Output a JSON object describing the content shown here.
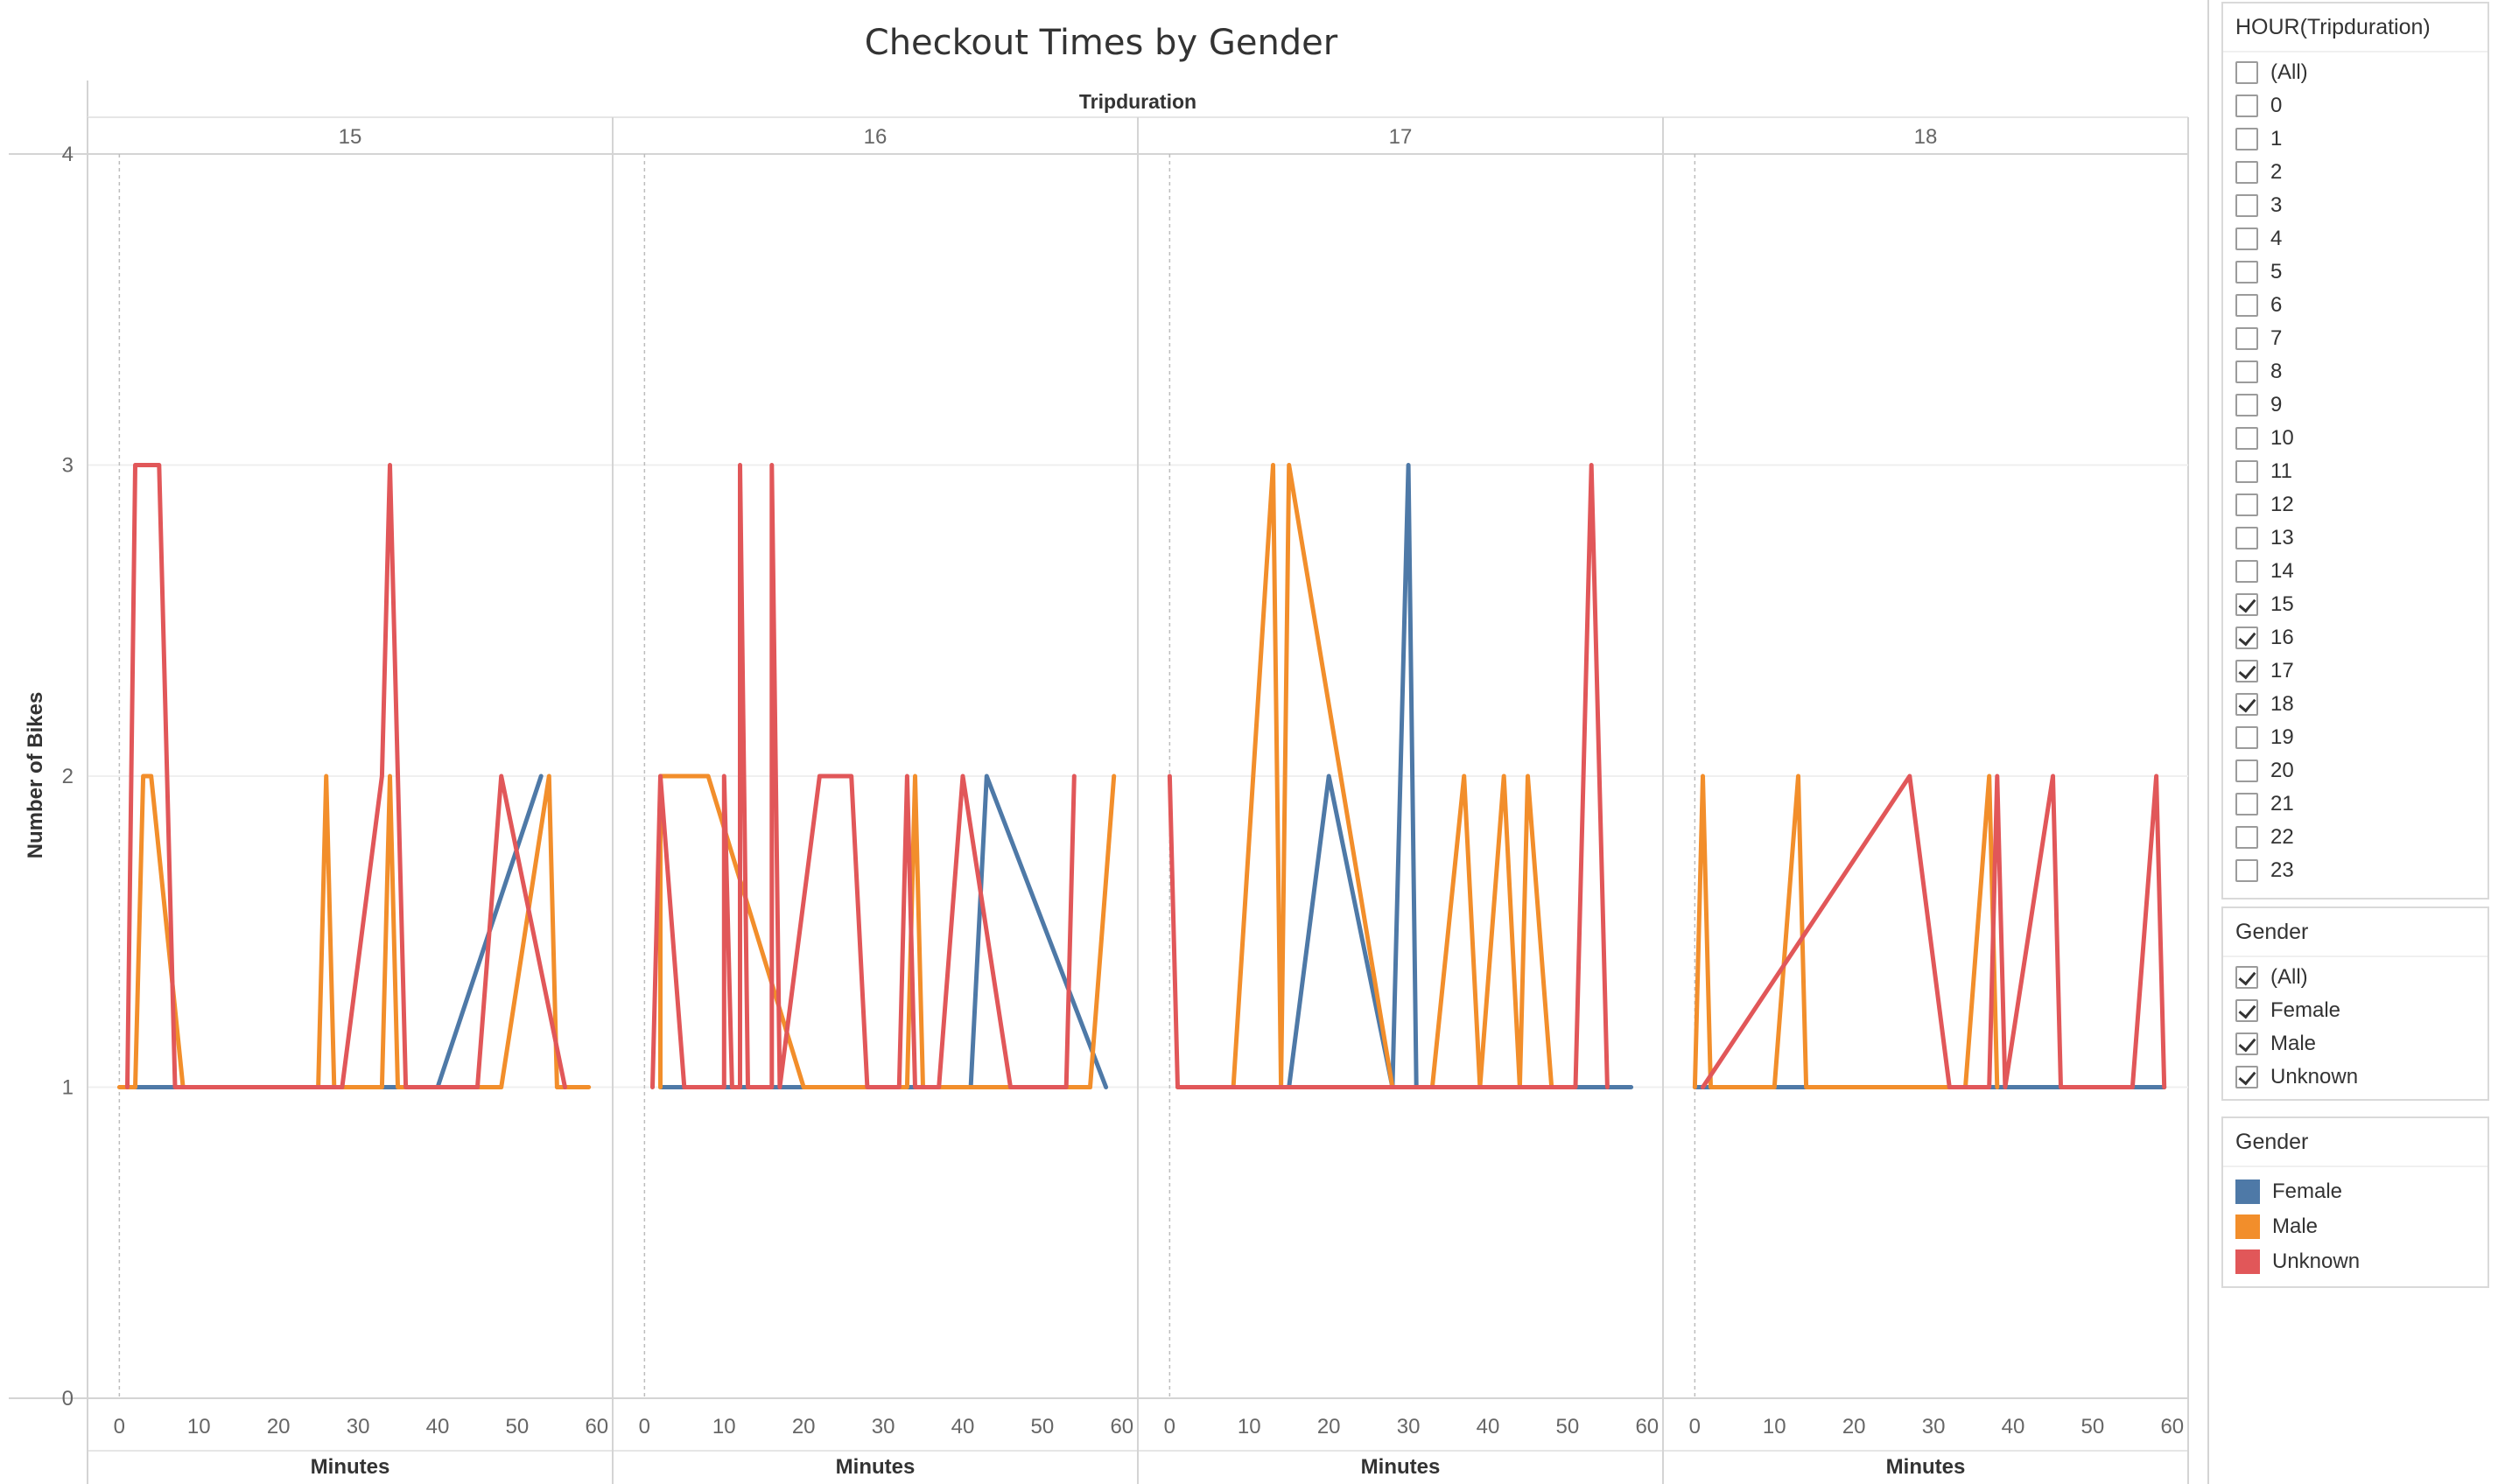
{
  "title": "Checkout Times by Gender",
  "column_header": "Tripduration",
  "colors": {
    "Female": "#4e79a7",
    "Male": "#f28e2b",
    "Unknown": "#e15759"
  },
  "chart_data": {
    "type": "line",
    "title": "Checkout Times by Gender",
    "column_header": "Tripduration",
    "xlabel": "Minutes",
    "ylabel": "Number of Bikes",
    "xlim": [
      -4,
      62
    ],
    "ylim": [
      0,
      4
    ],
    "xticks": [
      "0",
      "10",
      "20",
      "30",
      "40",
      "50",
      "60"
    ],
    "yticks": [
      "0",
      "1",
      "2",
      "3",
      "4"
    ],
    "grid": true,
    "panels": [
      {
        "label": "15",
        "series": [
          {
            "name": "Female",
            "points": [
              [
                1,
                1
              ],
              [
                40,
                1
              ],
              [
                53,
                2
              ]
            ]
          },
          {
            "name": "Male",
            "points": [
              [
                0,
                1
              ],
              [
                2,
                1
              ],
              [
                3,
                2
              ],
              [
                4,
                2
              ],
              [
                8,
                1
              ],
              [
                25,
                1
              ],
              [
                26,
                2
              ],
              [
                27,
                1
              ],
              [
                33,
                1
              ],
              [
                34,
                2
              ],
              [
                35,
                1
              ],
              [
                48,
                1
              ],
              [
                54,
                2
              ],
              [
                55,
                1
              ],
              [
                59,
                1
              ]
            ]
          },
          {
            "name": "Unknown",
            "points": [
              [
                1,
                1
              ],
              [
                2,
                3
              ],
              [
                5,
                3
              ],
              [
                7,
                1
              ],
              [
                28,
                1
              ],
              [
                33,
                2
              ],
              [
                34,
                3
              ],
              [
                36,
                1
              ],
              [
                45,
                1
              ],
              [
                48,
                2
              ],
              [
                56,
                1
              ]
            ]
          }
        ]
      },
      {
        "label": "16",
        "series": [
          {
            "name": "Female",
            "points": [
              [
                2,
                1
              ],
              [
                41,
                1
              ],
              [
                43,
                2
              ],
              [
                58,
                1
              ]
            ]
          },
          {
            "name": "Male",
            "points": [
              [
                2,
                1
              ],
              [
                2,
                2
              ],
              [
                8,
                2
              ],
              [
                20,
                1
              ],
              [
                33,
                1
              ],
              [
                34,
                2
              ],
              [
                35,
                1
              ],
              [
                54,
                1
              ],
              [
                56,
                1
              ],
              [
                59,
                2
              ]
            ]
          },
          {
            "name": "Unknown",
            "points": [
              [
                1,
                1
              ],
              [
                2,
                2
              ],
              [
                5,
                1
              ],
              [
                10,
                1
              ],
              [
                10,
                2
              ],
              [
                11,
                1
              ],
              [
                12,
                1
              ],
              [
                12,
                3
              ],
              [
                13,
                1
              ],
              [
                16,
                1
              ],
              [
                16,
                3
              ],
              [
                17,
                1
              ],
              [
                22,
                2
              ],
              [
                26,
                2
              ],
              [
                28,
                1
              ],
              [
                32,
                1
              ],
              [
                33,
                2
              ],
              [
                34,
                1
              ],
              [
                37,
                1
              ],
              [
                40,
                2
              ],
              [
                46,
                1
              ],
              [
                53,
                1
              ],
              [
                54,
                2
              ]
            ]
          }
        ]
      },
      {
        "label": "17",
        "series": [
          {
            "name": "Female",
            "points": [
              [
                7,
                1
              ],
              [
                15,
                1
              ],
              [
                20,
                2
              ],
              [
                28,
                1
              ],
              [
                30,
                3
              ],
              [
                31,
                1
              ],
              [
                58,
                1
              ]
            ]
          },
          {
            "name": "Male",
            "points": [
              [
                1,
                1
              ],
              [
                8,
                1
              ],
              [
                13,
                3
              ],
              [
                14,
                1
              ],
              [
                15,
                3
              ],
              [
                28,
                1
              ],
              [
                30,
                1
              ],
              [
                33,
                1
              ],
              [
                37,
                2
              ],
              [
                39,
                1
              ],
              [
                42,
                2
              ],
              [
                44,
                1
              ],
              [
                45,
                2
              ],
              [
                48,
                1
              ]
            ]
          },
          {
            "name": "Unknown",
            "points": [
              [
                0,
                2
              ],
              [
                1,
                1
              ],
              [
                8,
                1
              ],
              [
                28,
                1
              ],
              [
                51,
                1
              ],
              [
                53,
                3
              ],
              [
                55,
                1
              ]
            ]
          }
        ]
      },
      {
        "label": "18",
        "series": [
          {
            "name": "Female",
            "points": [
              [
                0,
                1
              ],
              [
                59,
                1
              ]
            ]
          },
          {
            "name": "Male",
            "points": [
              [
                0,
                1
              ],
              [
                1,
                2
              ],
              [
                2,
                1
              ],
              [
                10,
                1
              ],
              [
                13,
                2
              ],
              [
                14,
                1
              ],
              [
                34,
                1
              ],
              [
                37,
                2
              ],
              [
                38,
                1
              ]
            ]
          },
          {
            "name": "Unknown",
            "points": [
              [
                1,
                1
              ],
              [
                27,
                2
              ],
              [
                32,
                1
              ],
              [
                37,
                1
              ],
              [
                38,
                2
              ],
              [
                39,
                1
              ],
              [
                45,
                2
              ],
              [
                46,
                1
              ],
              [
                55,
                1
              ],
              [
                58,
                2
              ],
              [
                59,
                1
              ]
            ]
          }
        ]
      }
    ]
  },
  "filters": {
    "hour": {
      "title": "HOUR(Tripduration)",
      "items": [
        {
          "label": "(All)",
          "checked": false
        },
        {
          "label": "0",
          "checked": false
        },
        {
          "label": "1",
          "checked": false
        },
        {
          "label": "2",
          "checked": false
        },
        {
          "label": "3",
          "checked": false
        },
        {
          "label": "4",
          "checked": false
        },
        {
          "label": "5",
          "checked": false
        },
        {
          "label": "6",
          "checked": false
        },
        {
          "label": "7",
          "checked": false
        },
        {
          "label": "8",
          "checked": false
        },
        {
          "label": "9",
          "checked": false
        },
        {
          "label": "10",
          "checked": false
        },
        {
          "label": "11",
          "checked": false
        },
        {
          "label": "12",
          "checked": false
        },
        {
          "label": "13",
          "checked": false
        },
        {
          "label": "14",
          "checked": false
        },
        {
          "label": "15",
          "checked": true
        },
        {
          "label": "16",
          "checked": true
        },
        {
          "label": "17",
          "checked": true
        },
        {
          "label": "18",
          "checked": true
        },
        {
          "label": "19",
          "checked": false
        },
        {
          "label": "20",
          "checked": false
        },
        {
          "label": "21",
          "checked": false
        },
        {
          "label": "22",
          "checked": false
        },
        {
          "label": "23",
          "checked": false
        }
      ]
    },
    "gender": {
      "title": "Gender",
      "items": [
        {
          "label": "(All)",
          "checked": true
        },
        {
          "label": "Female",
          "checked": true
        },
        {
          "label": "Male",
          "checked": true
        },
        {
          "label": "Unknown",
          "checked": true
        }
      ]
    }
  },
  "legend": {
    "title": "Gender",
    "items": [
      {
        "label": "Female",
        "color": "#4e79a7"
      },
      {
        "label": "Male",
        "color": "#f28e2b"
      },
      {
        "label": "Unknown",
        "color": "#e15759"
      }
    ]
  }
}
